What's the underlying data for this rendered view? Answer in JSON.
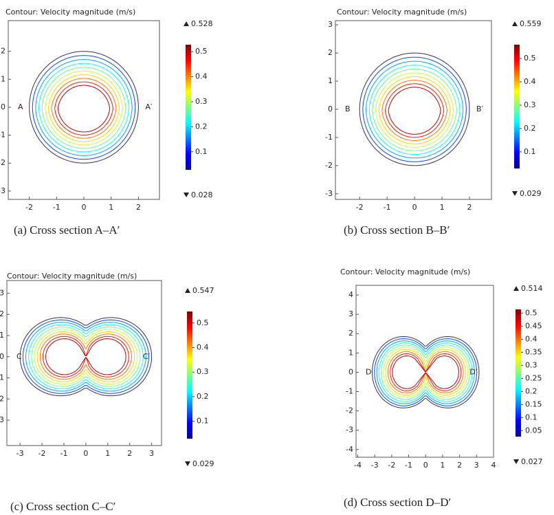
{
  "panels": [
    {
      "type": "contour",
      "title": "Contour: Velocity magnitude (m/s)",
      "xlim": [
        -2.77,
        2.77
      ],
      "ylim": [
        -3.3,
        3.1
      ],
      "xticks": [
        -2,
        -1,
        0,
        1,
        2
      ],
      "yticks": [
        -3,
        -2,
        -1,
        0,
        1,
        2
      ],
      "colorbar": {
        "max": 0.528,
        "min": 0.028,
        "ticks": [
          0.1,
          0.2,
          0.3,
          0.4,
          0.5
        ]
      },
      "left_label": "A",
      "right_label": "A′",
      "caption": "(a) Cross section A–A′"
    },
    {
      "type": "contour",
      "title": "Contour: Velocity magnitude (m/s)",
      "xlim": [
        -2.88,
        2.8
      ],
      "ylim": [
        -3.2,
        3.15
      ],
      "xticks": [
        -2,
        -1,
        0,
        1,
        2
      ],
      "yticks": [
        -3,
        -2,
        -1,
        0,
        1,
        2,
        3
      ],
      "colorbar": {
        "max": 0.559,
        "min": 0.029,
        "ticks": [
          0.1,
          0.2,
          0.3,
          0.4,
          0.5
        ]
      },
      "left_label": "B",
      "right_label": "B′",
      "caption": "(b) Cross section B–B′"
    },
    {
      "type": "contour",
      "title": "Contour: Velocity magnitude (m/s)",
      "xlim": [
        -3.6,
        3.45
      ],
      "ylim": [
        -4.2,
        3.6
      ],
      "xticks": [
        -3,
        -2,
        -1,
        0,
        1,
        2,
        3
      ],
      "yticks": [
        -3,
        -2,
        -1,
        0,
        1,
        2,
        3
      ],
      "colorbar": {
        "max": 0.547,
        "min": 0.029,
        "ticks": [
          0.1,
          0.2,
          0.3,
          0.4,
          0.5
        ]
      },
      "left_label": "C",
      "right_label": "C′",
      "caption": "(c) Cross section C–C′"
    },
    {
      "type": "contour",
      "title": "Contour: Velocity magnitude (m/s)",
      "xlim": [
        -4.1,
        4
      ],
      "ylim": [
        -4.4,
        4.5
      ],
      "xticks": [
        -4,
        -3,
        -2,
        -1,
        0,
        1,
        2,
        3,
        4
      ],
      "yticks": [
        -4,
        -3,
        -2,
        -1,
        0,
        1,
        2,
        3,
        4
      ],
      "colorbar": {
        "max": 0.514,
        "min": 0.027,
        "ticks": [
          0.05,
          0.1,
          0.15,
          0.2,
          0.25,
          0.3,
          0.35,
          0.4,
          0.45,
          0.5
        ]
      },
      "left_label": "D",
      "right_label": "D′",
      "caption": "(d) Cross section D–D′"
    }
  ]
}
